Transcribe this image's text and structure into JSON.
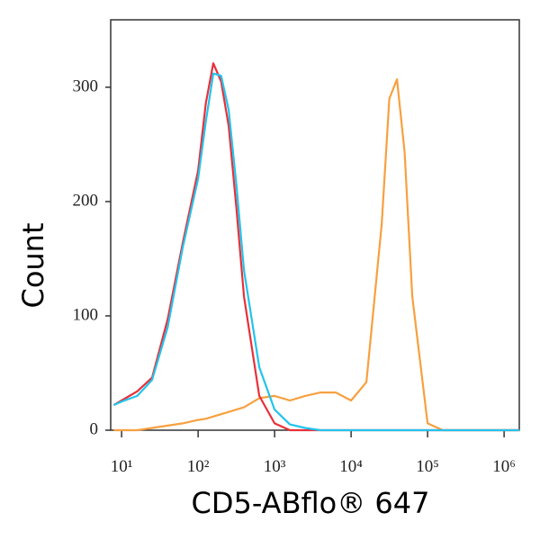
{
  "chart_data": {
    "type": "line",
    "xscale": "log",
    "x_label": "CD5-ABflo® 647",
    "y_label": "Count",
    "x": [
      7.9,
      10,
      16,
      25,
      40,
      63,
      100,
      126,
      158,
      200,
      251,
      316,
      398,
      631,
      1000,
      1585,
      2512,
      3981,
      6310,
      10000,
      15849,
      25119,
      31623,
      39811,
      50119,
      63096,
      100000,
      158489,
      316228,
      1000000,
      1584893
    ],
    "series": [
      {
        "color": "#e8303a",
        "values": [
          22,
          26,
          34,
          46,
          97,
          164,
          227,
          286,
          321,
          305,
          266,
          195,
          117,
          30,
          6,
          0,
          0,
          0,
          0,
          0,
          0,
          0,
          0,
          0,
          0,
          0,
          0,
          0,
          0,
          0,
          0
        ]
      },
      {
        "color": "#22c4ec",
        "values": [
          22,
          25,
          30,
          44,
          90,
          160,
          220,
          270,
          312,
          310,
          280,
          215,
          140,
          55,
          18,
          5,
          2,
          0,
          0,
          0,
          0,
          0,
          0,
          0,
          0,
          0,
          0,
          0,
          0,
          0,
          0
        ]
      },
      {
        "color": "#f7a040",
        "values": [
          0,
          0,
          0,
          2,
          4,
          6,
          9,
          10,
          12,
          14,
          16,
          18,
          20,
          28,
          30,
          26,
          30,
          33,
          33,
          26,
          42,
          180,
          290,
          307,
          243,
          117,
          6,
          0,
          0,
          0,
          0
        ]
      }
    ],
    "xlim": [
      7.2,
      1580000
    ],
    "xticks": [
      {
        "value": 10,
        "label": "10¹"
      },
      {
        "value": 100,
        "label": "10²"
      },
      {
        "value": 1000,
        "label": "10³"
      },
      {
        "value": 10000,
        "label": "10⁴"
      },
      {
        "value": 100000,
        "label": "10⁵"
      },
      {
        "value": 1000000,
        "label": "10⁶"
      }
    ],
    "ylim": [
      0,
      359
    ],
    "yticks": [
      0,
      100,
      200,
      300
    ],
    "grid": false
  }
}
